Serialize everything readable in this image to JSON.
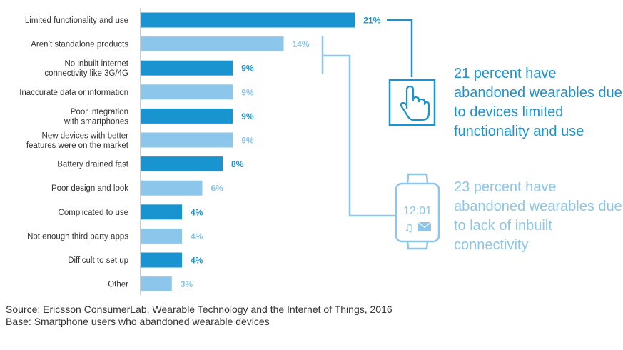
{
  "chart_data": {
    "type": "bar",
    "orientation": "horizontal",
    "categories": [
      [
        "Limited functionality and use"
      ],
      [
        "Aren’t standalone products"
      ],
      [
        "No inbuilt internet",
        "connectivity like 3G/4G"
      ],
      [
        "Inaccurate data or information"
      ],
      [
        "Poor integration",
        "with smartphones"
      ],
      [
        "New devices with better",
        "features were on the market"
      ],
      [
        "Battery drained fast"
      ],
      [
        "Poor design and look"
      ],
      [
        "Complicated to use"
      ],
      [
        "Not enough third party apps"
      ],
      [
        "Difficult to set up"
      ],
      [
        "Other"
      ]
    ],
    "values": [
      21,
      14,
      9,
      9,
      9,
      9,
      8,
      6,
      4,
      4,
      4,
      3
    ],
    "value_labels": [
      "21%",
      "14%",
      "9%",
      "9%",
      "9%",
      "9%",
      "8%",
      "6%",
      "4%",
      "4%",
      "4%",
      "3%"
    ],
    "highlighted": [
      true,
      false,
      true,
      false,
      true,
      false,
      true,
      false,
      true,
      false,
      true,
      false
    ],
    "colors": {
      "dark": "#1a94d0",
      "light": "#8cc6ea"
    },
    "grid": false,
    "legend": "none"
  },
  "callouts": [
    {
      "text": "21 percent have abandoned wearables due to devices limited functionality and use",
      "color": "#1a94d0",
      "icon": "hand-pointer-icon"
    },
    {
      "text": "23 percent have abandoned wearables due to lack of inbuilt connectivity",
      "color": "#8cc6ea",
      "icon": "smartwatch-icon",
      "watch_time": "12:01"
    }
  ],
  "notes": {
    "source": "Source: Ericsson ConsumerLab, Wearable Technology and the Internet of Things, 2016",
    "base": "Base: Smartphone users who abandoned wearable devices"
  }
}
